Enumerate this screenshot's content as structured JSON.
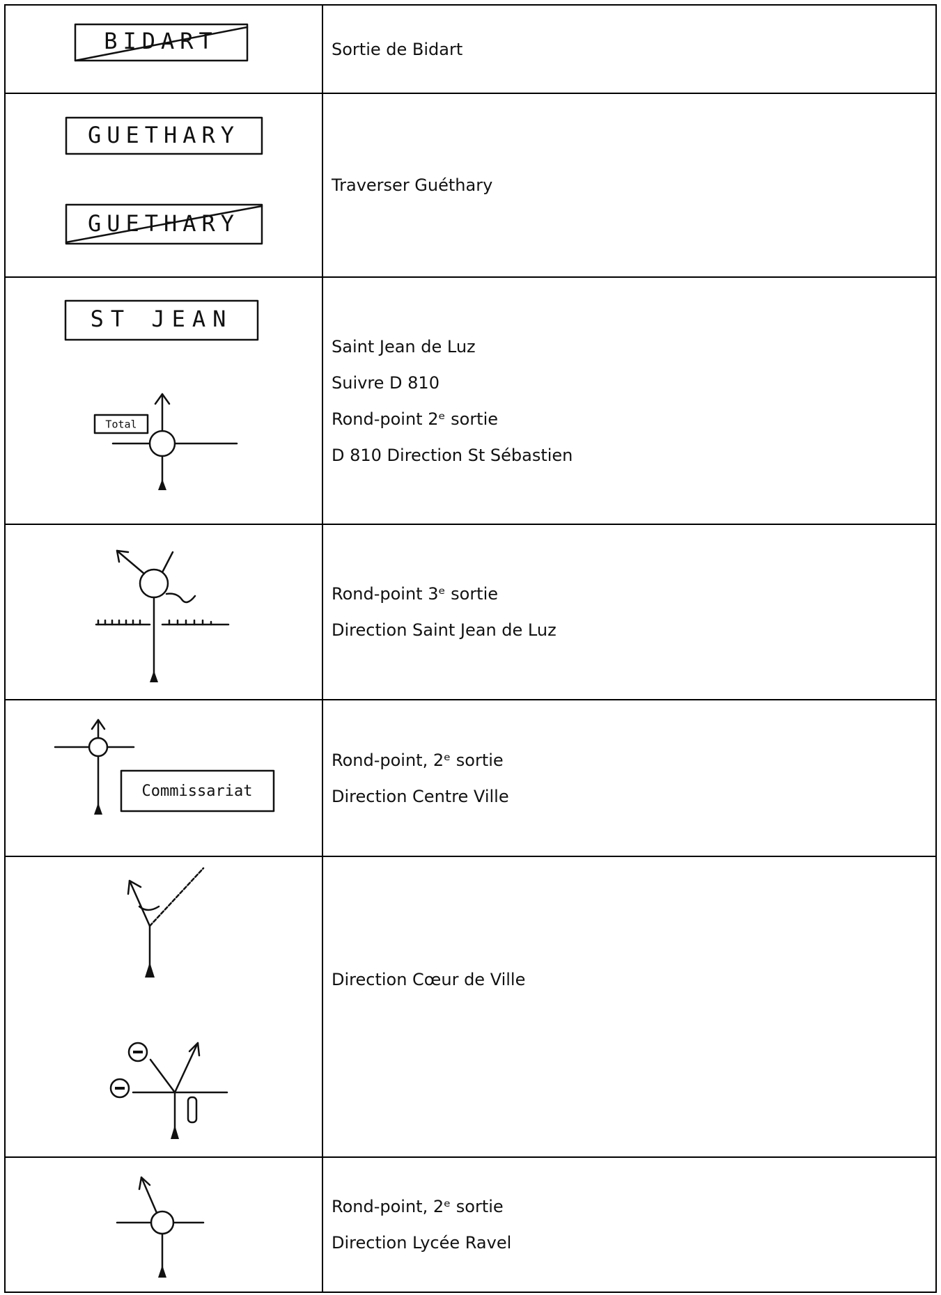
{
  "rows": [
    {
      "sketch_labels": [
        "BIDART"
      ],
      "lines": [
        "Sortie de Bidart"
      ]
    },
    {
      "sketch_labels": [
        "GUETHARY",
        "GUETHARY"
      ],
      "lines": [
        "Traverser Guéthary"
      ]
    },
    {
      "sketch_labels": [
        "ST JEAN",
        "Total"
      ],
      "lines": [
        "Saint Jean de Luz",
        "Suivre D 810",
        "Rond-point 2ᵉ sortie",
        "D 810 Direction St Sébastien"
      ]
    },
    {
      "lines": [
        "Rond-point 3ᵉ sortie",
        "Direction Saint Jean de Luz"
      ]
    },
    {
      "sketch_labels": [
        "Commissariat"
      ],
      "lines": [
        "Rond-point, 2ᵉ sortie",
        "Direction Centre Ville"
      ]
    },
    {
      "lines": [
        "Direction Cœur de Ville"
      ]
    },
    {
      "lines": [
        "Rond-point, 2ᵉ sortie",
        "Direction Lycée Ravel"
      ]
    }
  ]
}
